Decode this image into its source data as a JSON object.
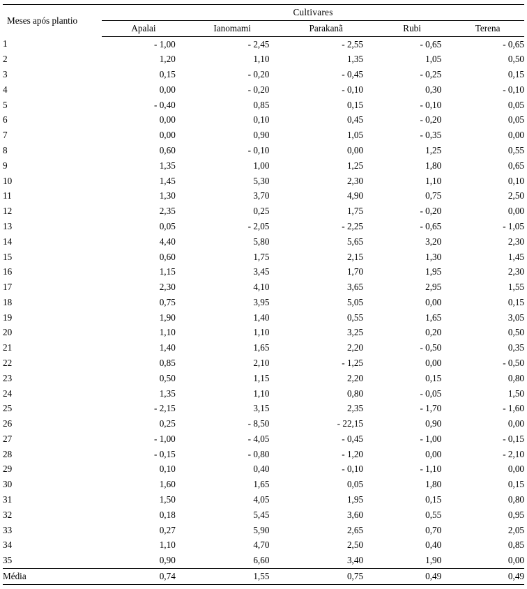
{
  "table": {
    "type": "table",
    "background_color": "#ffffff",
    "grid_color": "#000000",
    "font_family": "Times New Roman",
    "base_fontsize": 13.2,
    "row_label_header": "Meses após plantio",
    "group_header": "Cultivares",
    "columns": [
      "Apalai",
      "Ianomami",
      "Parakanã",
      "Rubi",
      "Terena"
    ],
    "column_widths_pct": [
      19,
      16,
      18,
      18,
      15,
      14
    ],
    "align": [
      "left",
      "right",
      "right",
      "right",
      "right",
      "right"
    ],
    "footer_label": "Média",
    "footer_values": [
      "0,74",
      "1,55",
      "0,75",
      "0,49",
      "0,49"
    ],
    "rows": [
      {
        "m": "1",
        "v": [
          "- 1,00",
          "- 2,45",
          "- 2,55",
          "- 0,65",
          "- 0,65"
        ]
      },
      {
        "m": "2",
        "v": [
          "1,20",
          "1,10",
          "1,35",
          "1,05",
          "0,50"
        ]
      },
      {
        "m": "3",
        "v": [
          "0,15",
          "- 0,20",
          "- 0,45",
          "- 0,25",
          "0,15"
        ]
      },
      {
        "m": "4",
        "v": [
          "0,00",
          "- 0,20",
          "- 0,10",
          "0,30",
          "- 0,10"
        ]
      },
      {
        "m": "5",
        "v": [
          "- 0,40",
          "0,85",
          "0,15",
          "- 0,10",
          "0,05"
        ]
      },
      {
        "m": "6",
        "v": [
          "0,00",
          "0,10",
          "0,45",
          "- 0,20",
          "0,05"
        ]
      },
      {
        "m": "7",
        "v": [
          "0,00",
          "0,90",
          "1,05",
          "- 0,35",
          "0,00"
        ]
      },
      {
        "m": "8",
        "v": [
          "0,60",
          "- 0,10",
          "0,00",
          "1,25",
          "0,55"
        ]
      },
      {
        "m": "9",
        "v": [
          "1,35",
          "1,00",
          "1,25",
          "1,80",
          "0,65"
        ]
      },
      {
        "m": "10",
        "v": [
          "1,45",
          "5,30",
          "2,30",
          "1,10",
          "0,10"
        ]
      },
      {
        "m": "11",
        "v": [
          "1,30",
          "3,70",
          "4,90",
          "0,75",
          "2,50"
        ]
      },
      {
        "m": "12",
        "v": [
          "2,35",
          "0,25",
          "1,75",
          "- 0,20",
          "0,00"
        ]
      },
      {
        "m": "13",
        "v": [
          "0,05",
          "- 2,05",
          "- 2,25",
          "- 0,65",
          "- 1,05"
        ]
      },
      {
        "m": "14",
        "v": [
          "4,40",
          "5,80",
          "5,65",
          "3,20",
          "2,30"
        ]
      },
      {
        "m": "15",
        "v": [
          "0,60",
          "1,75",
          "2,15",
          "1,30",
          "1,45"
        ]
      },
      {
        "m": "16",
        "v": [
          "1,15",
          "3,45",
          "1,70",
          "1,95",
          "2,30"
        ]
      },
      {
        "m": "17",
        "v": [
          "2,30",
          "4,10",
          "3,65",
          "2,95",
          "1,55"
        ]
      },
      {
        "m": "18",
        "v": [
          "0,75",
          "3,95",
          "5,05",
          "0,00",
          "0,15"
        ]
      },
      {
        "m": "19",
        "v": [
          "1,90",
          "1,40",
          "0,55",
          "1,65",
          "3,05"
        ]
      },
      {
        "m": "20",
        "v": [
          "1,10",
          "1,10",
          "3,25",
          "0,20",
          "0,50"
        ]
      },
      {
        "m": "21",
        "v": [
          "1,40",
          "1,65",
          "2,20",
          "- 0,50",
          "0,35"
        ]
      },
      {
        "m": "22",
        "v": [
          "0,85",
          "2,10",
          "- 1,25",
          "0,00",
          "- 0,50"
        ]
      },
      {
        "m": "23",
        "v": [
          "0,50",
          "1,15",
          "2,20",
          "0,15",
          "0,80"
        ]
      },
      {
        "m": "24",
        "v": [
          "1,35",
          "1,10",
          "0,80",
          "- 0,05",
          "1,50"
        ]
      },
      {
        "m": "25",
        "v": [
          "- 2,15",
          "3,15",
          "2,35",
          "- 1,70",
          "- 1,60"
        ]
      },
      {
        "m": "26",
        "v": [
          "0,25",
          "- 8,50",
          "- 22,15",
          "0,90",
          "0,00"
        ]
      },
      {
        "m": "27",
        "v": [
          "- 1,00",
          "- 4,05",
          "- 0,45",
          "- 1,00",
          "- 0,15"
        ]
      },
      {
        "m": "28",
        "v": [
          "- 0,15",
          "- 0,80",
          "- 1,20",
          "0,00",
          "- 2,10"
        ]
      },
      {
        "m": "29",
        "v": [
          "0,10",
          "0,40",
          "- 0,10",
          "- 1,10",
          "0,00"
        ]
      },
      {
        "m": "30",
        "v": [
          "1,60",
          "1,65",
          "0,05",
          "1,80",
          "0,15"
        ]
      },
      {
        "m": "31",
        "v": [
          "1,50",
          "4,05",
          "1,95",
          "0,15",
          "0,80"
        ]
      },
      {
        "m": "32",
        "v": [
          "0,18",
          "5,45",
          "3,60",
          "0,55",
          "0,95"
        ]
      },
      {
        "m": "33",
        "v": [
          "0,27",
          "5,90",
          "2,65",
          "0,70",
          "2,05"
        ]
      },
      {
        "m": "34",
        "v": [
          "1,10",
          "4,70",
          "2,50",
          "0,40",
          "0,85"
        ]
      },
      {
        "m": "35",
        "v": [
          "0,90",
          "6,60",
          "3,40",
          "1,90",
          "0,00"
        ]
      }
    ]
  }
}
